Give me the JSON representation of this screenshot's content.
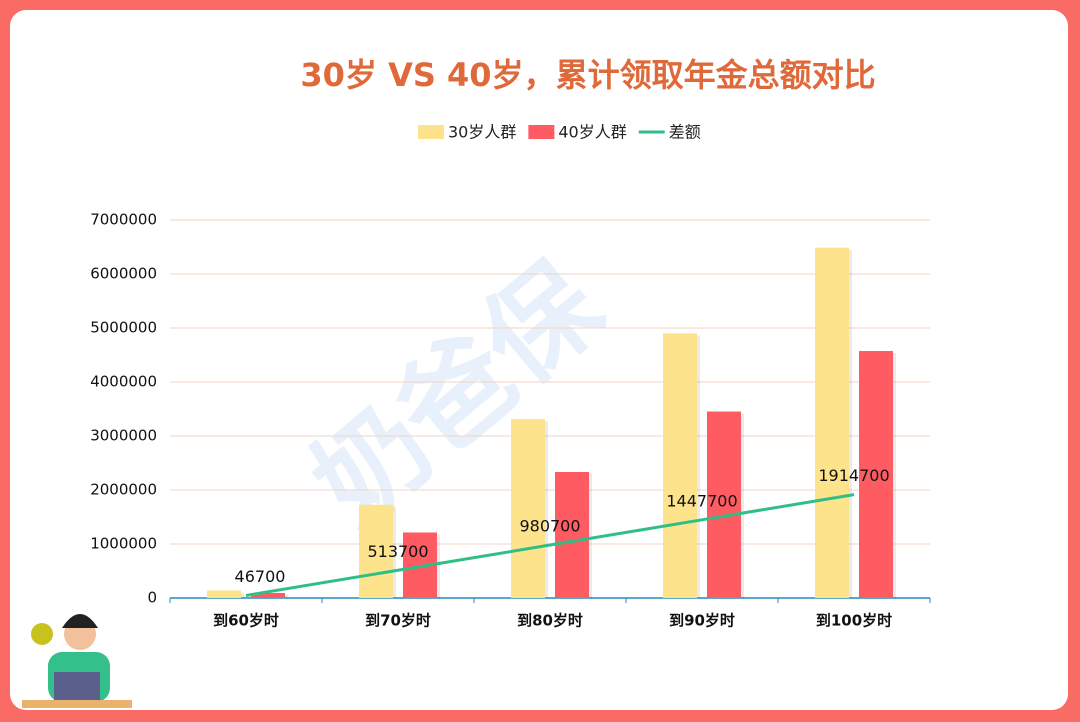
{
  "chart_data": {
    "type": "bar-line",
    "title": "30岁 VS 40岁，累计领取年金总额对比",
    "watermark": "奶爸保",
    "categories": [
      "到60岁时",
      "到70岁时",
      "到80岁时",
      "到90岁时",
      "到100岁时"
    ],
    "series": [
      {
        "name": "30岁人群",
        "type": "bar",
        "color": "#fde38c",
        "values": [
          140100,
          1727100,
          3314100,
          4901100,
          6488100
        ]
      },
      {
        "name": "40岁人群",
        "type": "bar",
        "color": "#fe5b63",
        "values": [
          93400,
          1213400,
          2333400,
          3453400,
          4573400
        ]
      },
      {
        "name": "差额",
        "type": "line",
        "color": "#2fbf86",
        "values": [
          46700,
          513700,
          980700,
          1447700,
          1914700
        ]
      }
    ],
    "ylim": [
      0,
      7000000
    ],
    "yticks": [
      0,
      1000000,
      2000000,
      3000000,
      4000000,
      5000000,
      6000000,
      7000000
    ],
    "grid": true
  }
}
